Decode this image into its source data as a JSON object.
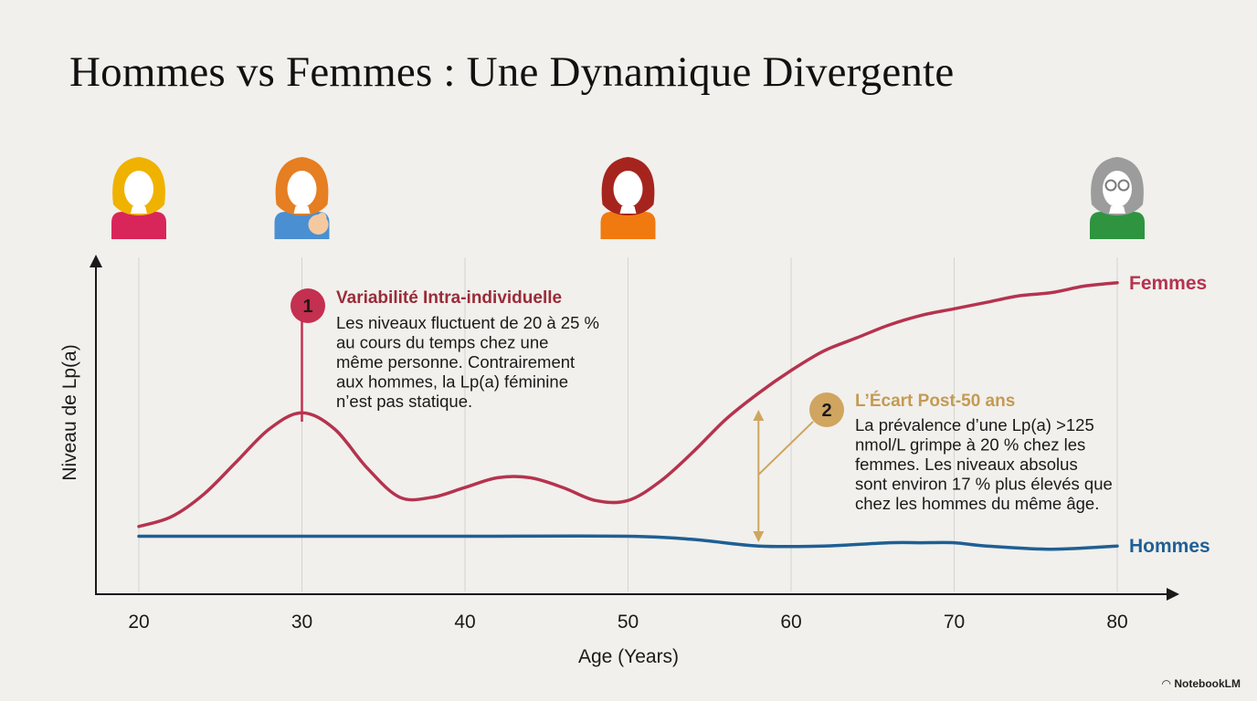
{
  "title": "Hommes vs Femmes : Une Dynamique Divergente",
  "brand": "NotebookLM",
  "colors": {
    "femmes": "#b5334f",
    "hommes": "#1f5f94",
    "annotation1": "#c4304f",
    "annotation2": "#cfa560",
    "grid": "#d4d4d4",
    "axis": "#1a1a1a"
  },
  "icons": [
    {
      "name": "woman-blonde-icon",
      "age": 20,
      "hair": "#f0b200",
      "body": "#d8265a"
    },
    {
      "name": "woman-pregnant-icon",
      "age": 30,
      "hair": "#e67e22",
      "body": "#4a8fd1"
    },
    {
      "name": "woman-redhair-icon",
      "age": 50,
      "hair": "#a6241e",
      "body": "#f07a10"
    },
    {
      "name": "woman-senior-glasses-icon",
      "age": 80,
      "hair": "#9c9c9c",
      "body": "#2e9440"
    }
  ],
  "chart_data": {
    "type": "line",
    "xlabel": "Age (Years)",
    "ylabel": "Niveau de Lp(a)",
    "x_ticks": [
      20,
      30,
      40,
      50,
      60,
      70,
      80
    ],
    "xlim": [
      20,
      80
    ],
    "ylim": [
      0,
      100
    ],
    "grid": "vertical",
    "y_tick_labels": false,
    "series": [
      {
        "name": "Femmes",
        "x": [
          20,
          22,
          24,
          26,
          28,
          30,
          32,
          34,
          36,
          38,
          40,
          42,
          44,
          46,
          48,
          50,
          52,
          54,
          56,
          58,
          60,
          62,
          64,
          66,
          68,
          70,
          72,
          74,
          76,
          78,
          80
        ],
        "values": [
          20,
          23,
          30,
          40,
          50,
          55,
          50,
          38,
          29,
          29,
          32,
          35,
          35,
          32,
          28,
          28,
          34,
          43,
          53,
          61,
          68,
          74,
          78,
          82,
          85,
          87,
          89,
          91,
          92,
          94,
          95
        ]
      },
      {
        "name": "Hommes",
        "x": [
          20,
          30,
          40,
          50,
          54,
          58,
          62,
          66,
          68,
          70,
          72,
          76,
          80
        ],
        "values": [
          17,
          17,
          17,
          17,
          16,
          14,
          14,
          15,
          15,
          15,
          14,
          13,
          14
        ]
      }
    ],
    "annotations": [
      {
        "number": "1",
        "anchor_x": 30,
        "title": "Variabilité Intra-individuelle",
        "lines": [
          "Les niveaux fluctuent de 20 à 25 %",
          "au cours du temps chez une",
          "même personne. Contrairement",
          "aux hommes, la Lp(a) féminine",
          "n’est pas statique."
        ]
      },
      {
        "number": "2",
        "anchor_x": 58,
        "title": "L’Écart Post-50 ans",
        "lines": [
          "La prévalence d’une Lp(a) >125",
          "nmol/L grimpe à 20 % chez les",
          "femmes. Les niveaux absolus",
          "sont environ 17 % plus élevés que",
          "chez les hommes du même âge."
        ]
      }
    ]
  }
}
